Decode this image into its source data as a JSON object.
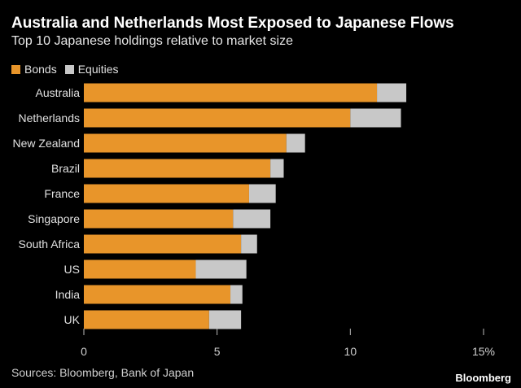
{
  "colors": {
    "bonds": "#E8952A",
    "equities": "#C8C8C8",
    "background": "#000000"
  },
  "chart_data": {
    "type": "bar",
    "orientation": "horizontal",
    "stacked": true,
    "title": "Australia and Netherlands Most Exposed to Japanese Flows",
    "subtitle": "Top 10 Japanese holdings relative to market size",
    "categories": [
      "Australia",
      "Netherlands",
      "New Zealand",
      "Brazil",
      "France",
      "Singapore",
      "South Africa",
      "US",
      "India",
      "UK"
    ],
    "series": [
      {
        "name": "Bonds",
        "values": [
          11.0,
          10.0,
          7.6,
          7.0,
          6.2,
          5.6,
          5.9,
          4.2,
          5.5,
          4.7
        ]
      },
      {
        "name": "Equities",
        "values": [
          1.1,
          1.9,
          0.7,
          0.5,
          1.0,
          1.4,
          0.6,
          1.9,
          0.45,
          1.2
        ]
      }
    ],
    "xlim": [
      0,
      15
    ],
    "xticks": [
      {
        "value": 0,
        "label": "0"
      },
      {
        "value": 5,
        "label": "5"
      },
      {
        "value": 10,
        "label": "10"
      },
      {
        "value": 15,
        "label": "15%"
      }
    ],
    "legend_position": "top-left",
    "grid": false
  },
  "footer": {
    "source": "Sources: Bloomberg, Bank of Japan",
    "brand": "Bloomberg"
  }
}
